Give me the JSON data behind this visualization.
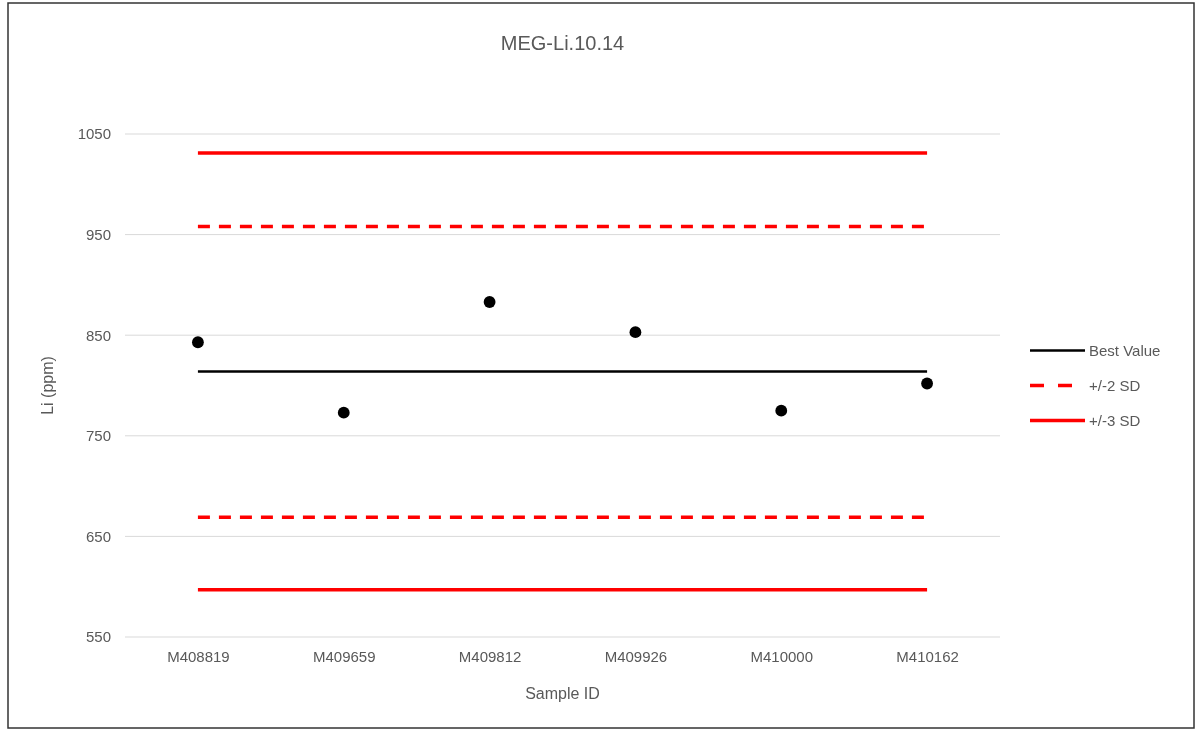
{
  "chart_data": {
    "type": "line",
    "title": "MEG-Li.10.14",
    "xlabel": "Sample ID",
    "ylabel": "Li (ppm)",
    "categories": [
      "M408819",
      "M409659",
      "M409812",
      "M409926",
      "M410000",
      "M410162"
    ],
    "series": [
      {
        "type": "scatter",
        "color": "#000000",
        "marker": "circle",
        "values": [
          843,
          773,
          883,
          853,
          775,
          802
        ]
      },
      {
        "type": "line",
        "name": "Best Value",
        "color": "#000000",
        "line_style": "solid",
        "values": [
          814,
          814,
          814,
          814,
          814,
          814
        ]
      },
      {
        "type": "line",
        "name": "+/-2 SD",
        "color": "#ff0000",
        "line_style": "dashed",
        "values": [
          958,
          958,
          958,
          958,
          958,
          958
        ]
      },
      {
        "type": "line",
        "color": "#ff0000",
        "line_style": "dashed",
        "values": [
          669,
          669,
          669,
          669,
          669,
          669
        ]
      },
      {
        "type": "line",
        "name": "+/-3 SD",
        "color": "#ff0000",
        "line_style": "solid",
        "values": [
          1031,
          1031,
          1031,
          1031,
          1031,
          1031
        ]
      },
      {
        "type": "line",
        "color": "#ff0000",
        "line_style": "solid",
        "values": [
          597,
          597,
          597,
          597,
          597,
          597
        ]
      }
    ],
    "ylim": [
      550,
      1050
    ],
    "yticks": [
      550,
      650,
      750,
      850,
      950,
      1050
    ],
    "grid": "y",
    "legend": "right"
  }
}
